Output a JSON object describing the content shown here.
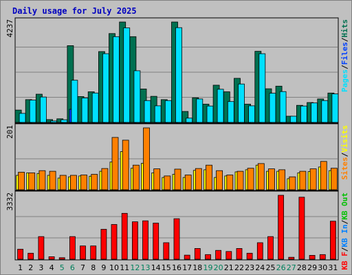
{
  "chart_data": {
    "type": "bar",
    "title": "Daily usage for July 2025",
    "categories": [
      "1",
      "2",
      "3",
      "4",
      "5",
      "6",
      "7",
      "8",
      "9",
      "10",
      "11",
      "12",
      "13",
      "14",
      "15",
      "16",
      "17",
      "18",
      "19",
      "20",
      "21",
      "22",
      "23",
      "24",
      "25",
      "26",
      "27",
      "28",
      "29",
      "30",
      "31"
    ],
    "weekend_days": [
      "5",
      "6",
      "12",
      "13",
      "19",
      "20",
      "26",
      "27"
    ],
    "colors": {
      "background": "#c0c0c0",
      "title": "#0000c0",
      "hits": "#007050",
      "files": "#0040ff",
      "pages": "#00e0ff",
      "visits": "#ffff00",
      "sites": "#ff8000",
      "kbytes_in": "#0080ff",
      "kbytes_out": "#00c000",
      "kbytes_f": "#ff0000",
      "weekday_label": "#000000",
      "weekend_label": "#00805c"
    },
    "panels": [
      {
        "name": "hits-files-pages",
        "max_label": "4237",
        "ylim": [
          0,
          4237
        ],
        "legend": [
          {
            "text": "Pages",
            "color": "#00e0ff"
          },
          {
            "text": "Files",
            "color": "#0040ff"
          },
          {
            "text": "Hits",
            "color": "#007050"
          }
        ],
        "series": [
          {
            "name": "Hits",
            "color": "#007050",
            "values": [
              520,
              960,
              1190,
              120,
              150,
              3240,
              1090,
              1290,
              2990,
              3750,
              4237,
              3620,
              1410,
              1100,
              960,
              4237,
              460,
              1040,
              770,
              1570,
              1290,
              1860,
              770,
              3000,
              1420,
              1530,
              260,
              720,
              840,
              990,
              1240
            ]
          },
          {
            "name": "Files",
            "color": "#0040ff",
            "values": [
              0,
              0,
              0,
              0,
              0,
              550,
              0,
              0,
              0,
              0,
              0,
              0,
              0,
              0,
              0,
              0,
              0,
              0,
              0,
              0,
              0,
              0,
              0,
              0,
              0,
              0,
              0,
              0,
              0,
              0,
              0
            ]
          },
          {
            "name": "Pages",
            "color": "#00e0ff",
            "values": [
              380,
              940,
              1070,
              60,
              110,
              1780,
              1030,
              1240,
              2900,
              3620,
              3990,
              2180,
              920,
              700,
              920,
              4000,
              180,
              990,
              690,
              1400,
              880,
              1620,
              700,
              2900,
              1230,
              1300,
              260,
              690,
              820,
              920,
              1200
            ]
          }
        ]
      },
      {
        "name": "visits-sites",
        "max_label": "201",
        "ylim": [
          0,
          201
        ],
        "legend": [
          {
            "text": "Sites",
            "color": "#ff8000"
          },
          {
            "text": "Visits",
            "color": "#ffff00"
          }
        ],
        "series": [
          {
            "name": "Visits",
            "color": "#ffff00",
            "values": [
              47,
              55,
              53,
              47,
              38,
              42,
              45,
              44,
              60,
              90,
              124,
              70,
              86,
              55,
              40,
              50,
              40,
              63,
              65,
              40,
              45,
              58,
              65,
              80,
              60,
              60,
              36,
              55,
              59,
              74,
              62
            ]
          },
          {
            "name": "Sites",
            "color": "#ff8000",
            "values": [
              57,
              55,
              62,
              60,
              47,
              47,
              48,
              50,
              69,
              170,
              161,
              80,
              201,
              68,
              45,
              67,
              48,
              69,
              80,
              62,
              48,
              60,
              70,
              85,
              68,
              65,
              42,
              60,
              68,
              92,
              70
            ]
          }
        ]
      },
      {
        "name": "kbytes",
        "max_label": "3332",
        "ylim": [
          0,
          3332
        ],
        "legend": [
          {
            "text": "KB F",
            "color": "#ff0000"
          },
          {
            "text": "KB In",
            "color": "#0080ff"
          },
          {
            "text": "KB Out",
            "color": "#00c000"
          }
        ],
        "series": [
          {
            "name": "KB F",
            "color": "#ff0000",
            "values": [
              520,
              310,
              1180,
              130,
              80,
              1180,
              690,
              690,
              1560,
              1810,
              2390,
              1950,
              2000,
              1880,
              860,
              2110,
              210,
              560,
              240,
              460,
              400,
              560,
              310,
              860,
              1180,
              3332,
              100,
              3230,
              200,
              240,
              1980
            ]
          }
        ]
      }
    ]
  }
}
